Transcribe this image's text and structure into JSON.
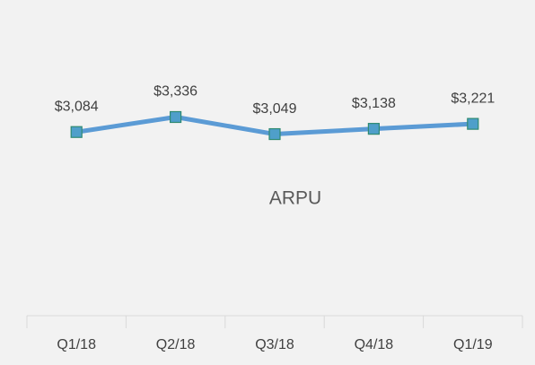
{
  "chart_data": {
    "type": "line",
    "title": "ARPU",
    "categories": [
      "Q1/18",
      "Q2/18",
      "Q3/18",
      "Q4/18",
      "Q1/19"
    ],
    "values": [
      3084,
      3336,
      3049,
      3138,
      3221
    ],
    "value_labels": [
      "$3,084",
      "$3,336",
      "$3,049",
      "$3,138",
      "$3,221"
    ],
    "color": "#5b9bd5",
    "ylim": [
      0,
      5000
    ]
  }
}
